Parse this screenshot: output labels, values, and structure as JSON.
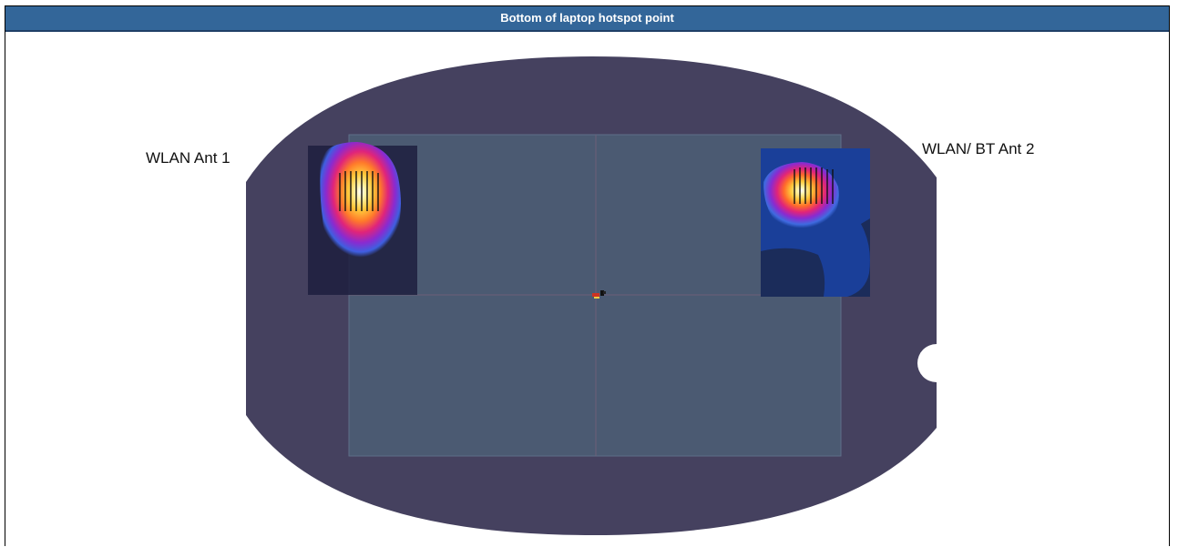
{
  "header": {
    "title": "Bottom of laptop hotspot point"
  },
  "labels": {
    "antenna_1": "WLAN Ant 1",
    "antenna_2": "WLAN/ BT Ant 2"
  },
  "colors": {
    "header": "#336699",
    "phantom": "#45415f",
    "laptop_base": "#4b5a72",
    "hotspot_high": "#ffffff",
    "hotspot_mid": "#ffcc33",
    "hotspot_low": "#cc2288",
    "field_background": "#1a3f99"
  }
}
